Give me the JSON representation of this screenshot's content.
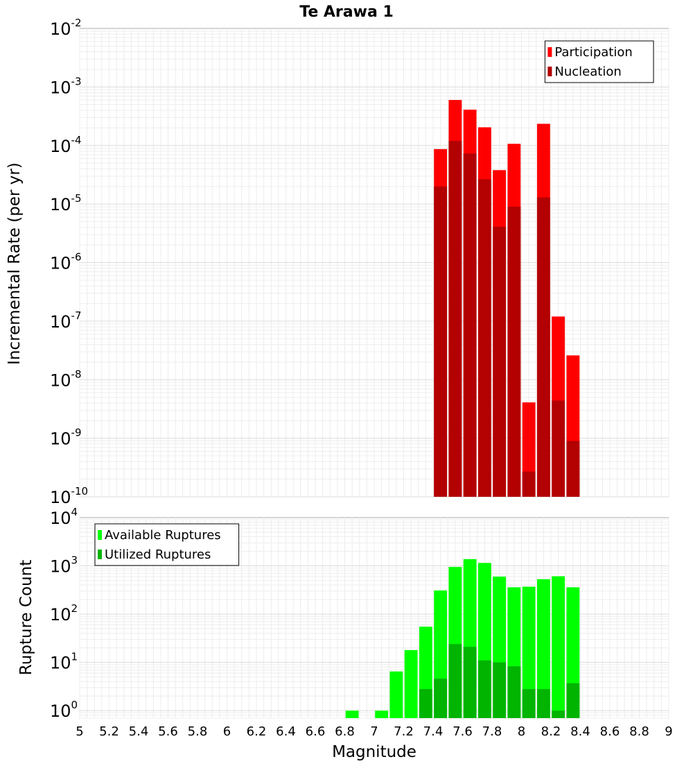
{
  "chart_data": [
    {
      "type": "bar",
      "title": "Te Arawa 1",
      "xlabel": "",
      "ylabel": "Incremental Rate (per yr)",
      "y_scale": "log",
      "ylim": [
        1e-10,
        0.01
      ],
      "xlim": [
        5,
        9
      ],
      "y_ticks": [
        {
          "base": "10",
          "exp": "-10",
          "value": 1e-10
        },
        {
          "base": "10",
          "exp": "-9",
          "value": 1e-09
        },
        {
          "base": "10",
          "exp": "-8",
          "value": 1e-08
        },
        {
          "base": "10",
          "exp": "-7",
          "value": 1e-07
        },
        {
          "base": "10",
          "exp": "-6",
          "value": 1e-06
        },
        {
          "base": "10",
          "exp": "-5",
          "value": 1e-05
        },
        {
          "base": "10",
          "exp": "-4",
          "value": 0.0001
        },
        {
          "base": "10",
          "exp": "-3",
          "value": 0.001
        },
        {
          "base": "10",
          "exp": "-2",
          "value": 0.01
        }
      ],
      "bin_width": 0.1,
      "legend_position": "top-right",
      "series": [
        {
          "name": "Participation",
          "color": "#ff0000",
          "x": [
            7.45,
            7.55,
            7.65,
            7.75,
            7.85,
            7.95,
            8.05,
            8.15,
            8.25,
            8.35
          ],
          "values": [
            8.7e-05,
            0.0006,
            0.00041,
            0.000205,
            3.8e-05,
            0.000107,
            4.1e-09,
            0.000235,
            1.2e-07,
            2.6e-08
          ]
        },
        {
          "name": "Nucleation",
          "color": "#b30000",
          "x": [
            7.45,
            7.55,
            7.65,
            7.75,
            7.85,
            7.95,
            8.05,
            8.15,
            8.25,
            8.35
          ],
          "values": [
            2e-05,
            0.00012,
            7.3e-05,
            2.65e-05,
            4.1e-06,
            9e-06,
            2.7e-10,
            1.3e-05,
            4.4e-09,
            9e-10
          ]
        }
      ]
    },
    {
      "type": "bar",
      "title": "",
      "xlabel": "Magnitude",
      "ylabel": "Rupture Count",
      "y_scale": "log",
      "ylim": [
        0.7,
        10000
      ],
      "xlim": [
        5,
        9
      ],
      "y_ticks": [
        {
          "base": "10",
          "exp": "0",
          "value": 1
        },
        {
          "base": "10",
          "exp": "1",
          "value": 10
        },
        {
          "base": "10",
          "exp": "2",
          "value": 100
        },
        {
          "base": "10",
          "exp": "3",
          "value": 1000
        },
        {
          "base": "10",
          "exp": "4",
          "value": 10000
        }
      ],
      "x_ticks": [
        "5",
        "5.2",
        "5.4",
        "5.6",
        "5.8",
        "6",
        "6.2",
        "6.4",
        "6.6",
        "6.8",
        "7",
        "7.2",
        "7.4",
        "7.6",
        "7.8",
        "8",
        "8.2",
        "8.4",
        "8.6",
        "8.8",
        "9"
      ],
      "x_tick_values": [
        5,
        5.2,
        5.4,
        5.6,
        5.8,
        6,
        6.2,
        6.4,
        6.6,
        6.8,
        7,
        7.2,
        7.4,
        7.6,
        7.8,
        8,
        8.2,
        8.4,
        8.6,
        8.8,
        9
      ],
      "bin_width": 0.1,
      "legend_position": "top-left",
      "series": [
        {
          "name": "Available Ruptures",
          "color": "#00ff00",
          "x": [
            6.85,
            7.05,
            7.15,
            7.25,
            7.35,
            7.45,
            7.55,
            7.65,
            7.75,
            7.85,
            7.95,
            8.05,
            8.15,
            8.25,
            8.35
          ],
          "values": [
            1,
            1,
            6.5,
            18,
            55,
            310,
            950,
            1380,
            1150,
            600,
            360,
            370,
            530,
            610,
            360
          ]
        },
        {
          "name": "Utilized Ruptures",
          "color": "#00b400",
          "x": [
            7.35,
            7.45,
            7.55,
            7.65,
            7.75,
            7.85,
            7.95,
            8.05,
            8.15,
            8.25,
            8.35
          ],
          "values": [
            2.8,
            4.6,
            24,
            21,
            11,
            10,
            8.3,
            2.8,
            2.8,
            1,
            3.7
          ]
        }
      ]
    }
  ]
}
